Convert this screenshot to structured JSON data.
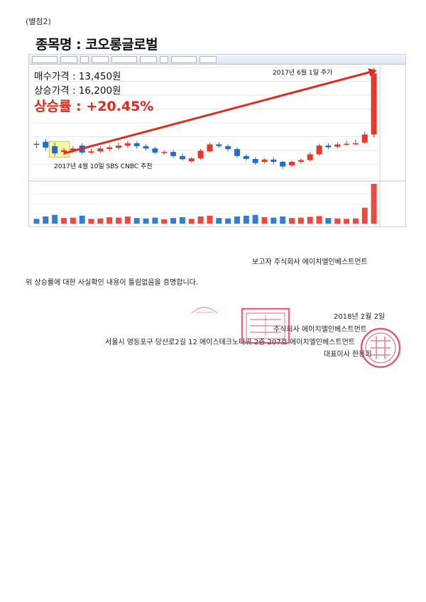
{
  "attachment": "(별첨2)",
  "stock_title": "종목명 : 코오롱글로벌",
  "buy_price": "매수가격 : 13,450원",
  "sell_price": "상승가격 : 16,200원",
  "rise_rate": "상승률 : +20.45%",
  "annotation_date": "2017년 6월 1일 주가",
  "annotation_recommend": "2017년 4월 10일 SBS CNBC 추천",
  "reporter": "보고자 주식회사 에이치엘인베스트먼트",
  "certification": "위 상승률에 대한 사실확인 내용이 틀림없음을 증명합니다.",
  "issue_date": "2018년 2월 2일",
  "company": "주식회사 에이치엘인베스트먼트",
  "address": "서울시 영등포구 당산로2길 12 에이스테크노타워 2층 207호 에이치엘인베스트먼트",
  "ceo": "대표이사 한용희",
  "colors": {
    "accent_red": "#e12a1d",
    "candle_up": "#e5392b",
    "candle_down": "#1f6fc9",
    "highlight": "#ffee58"
  },
  "chart_data": {
    "type": "candlestick",
    "y_range": [
      12600,
      16400
    ],
    "candles": [
      {
        "o": 13780,
        "c": 13760,
        "h": 13880,
        "l": 13620,
        "v": 12
      },
      {
        "o": 13850,
        "c": 13650,
        "h": 13950,
        "l": 13560,
        "v": 18
      },
      {
        "o": 13700,
        "c": 13450,
        "h": 13820,
        "l": 13350,
        "v": 22
      },
      {
        "o": 13500,
        "c": 13560,
        "h": 13640,
        "l": 13400,
        "v": 14
      },
      {
        "o": 13560,
        "c": 13620,
        "h": 13700,
        "l": 13480,
        "v": 15
      },
      {
        "o": 13720,
        "c": 13480,
        "h": 13800,
        "l": 13420,
        "v": 20
      },
      {
        "o": 13480,
        "c": 13520,
        "h": 13600,
        "l": 13420,
        "v": 12
      },
      {
        "o": 13520,
        "c": 13620,
        "h": 13700,
        "l": 13460,
        "v": 13
      },
      {
        "o": 13600,
        "c": 13660,
        "h": 13740,
        "l": 13520,
        "v": 16
      },
      {
        "o": 13640,
        "c": 13720,
        "h": 13820,
        "l": 13580,
        "v": 15
      },
      {
        "o": 13720,
        "c": 13800,
        "h": 13880,
        "l": 13640,
        "v": 18
      },
      {
        "o": 13800,
        "c": 13700,
        "h": 13860,
        "l": 13620,
        "v": 14
      },
      {
        "o": 13700,
        "c": 13620,
        "h": 13760,
        "l": 13540,
        "v": 13
      },
      {
        "o": 13620,
        "c": 13480,
        "h": 13680,
        "l": 13420,
        "v": 15
      },
      {
        "o": 13480,
        "c": 13500,
        "h": 13560,
        "l": 13400,
        "v": 11
      },
      {
        "o": 13500,
        "c": 13360,
        "h": 13580,
        "l": 13300,
        "v": 14
      },
      {
        "o": 13360,
        "c": 13250,
        "h": 13440,
        "l": 13200,
        "v": 16
      },
      {
        "o": 13180,
        "c": 13280,
        "h": 13320,
        "l": 13120,
        "v": 12
      },
      {
        "o": 13280,
        "c": 13540,
        "h": 13600,
        "l": 13240,
        "v": 18
      },
      {
        "o": 13520,
        "c": 13760,
        "h": 13820,
        "l": 13480,
        "v": 20
      },
      {
        "o": 13760,
        "c": 13700,
        "h": 13840,
        "l": 13640,
        "v": 14
      },
      {
        "o": 13700,
        "c": 13600,
        "h": 13760,
        "l": 13520,
        "v": 13
      },
      {
        "o": 13600,
        "c": 13360,
        "h": 13660,
        "l": 13300,
        "v": 18
      },
      {
        "o": 13360,
        "c": 13260,
        "h": 13420,
        "l": 13200,
        "v": 20
      },
      {
        "o": 13260,
        "c": 13120,
        "h": 13320,
        "l": 13060,
        "v": 22
      },
      {
        "o": 13160,
        "c": 13240,
        "h": 13280,
        "l": 13100,
        "v": 16
      },
      {
        "o": 13240,
        "c": 13160,
        "h": 13320,
        "l": 13080,
        "v": 15
      },
      {
        "o": 13160,
        "c": 13000,
        "h": 13200,
        "l": 12920,
        "v": 18
      },
      {
        "o": 13040,
        "c": 13160,
        "h": 13220,
        "l": 12980,
        "v": 14
      },
      {
        "o": 13160,
        "c": 13220,
        "h": 13280,
        "l": 13100,
        "v": 15
      },
      {
        "o": 13220,
        "c": 13420,
        "h": 13480,
        "l": 13180,
        "v": 17
      },
      {
        "o": 13420,
        "c": 13720,
        "h": 13780,
        "l": 13380,
        "v": 19
      },
      {
        "o": 13720,
        "c": 13660,
        "h": 13800,
        "l": 13600,
        "v": 14
      },
      {
        "o": 13680,
        "c": 13760,
        "h": 13840,
        "l": 13620,
        "v": 13
      },
      {
        "o": 13760,
        "c": 13780,
        "h": 13880,
        "l": 13700,
        "v": 12
      },
      {
        "o": 13780,
        "c": 13800,
        "h": 13920,
        "l": 13720,
        "v": 13
      },
      {
        "o": 13820,
        "c": 14100,
        "h": 14200,
        "l": 13780,
        "v": 40
      },
      {
        "o": 14100,
        "c": 16200,
        "h": 16380,
        "l": 14000,
        "v": 100
      }
    ]
  }
}
